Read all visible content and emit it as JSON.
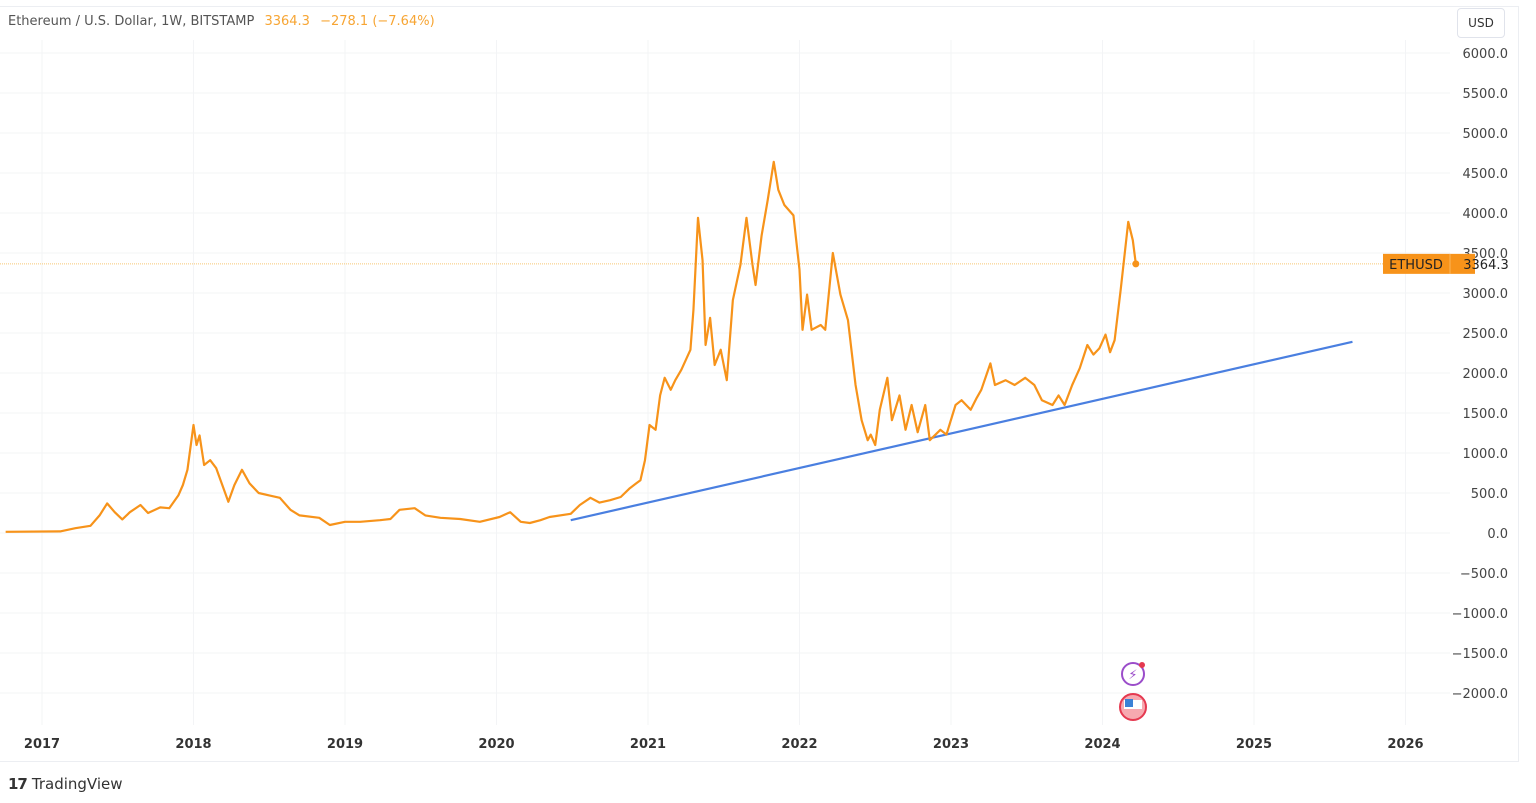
{
  "header": {
    "symbol_title": "Ethereum / U.S. Dollar, 1W, BITSTAMP",
    "last": "3364.3",
    "change": "−278.1 (−7.64%)",
    "currency_button": "USD"
  },
  "price_label": {
    "symbol": "ETHUSD",
    "value": "3364.3"
  },
  "branding": {
    "logo_text": "TradingView"
  },
  "chart_data": {
    "type": "line",
    "title": "Ethereum / U.S. Dollar, 1W, BITSTAMP",
    "xlabel": "",
    "ylabel": "",
    "xlim": [
      2016.76,
      2026.3
    ],
    "ylim": [
      -2300,
      6300
    ],
    "grid": true,
    "x_ticks": [
      "2017",
      "2018",
      "2019",
      "2020",
      "2021",
      "2022",
      "2023",
      "2024",
      "2025",
      "2026"
    ],
    "y_ticks": [
      "6000.0",
      "5500.0",
      "5000.0",
      "4500.0",
      "4000.0",
      "3500.0",
      "3000.0",
      "2500.0",
      "2000.0",
      "1500.0",
      "1000.0",
      "500.0",
      "0.0",
      "−500.0",
      "−1000.0",
      "−1500.0",
      "−2000.0"
    ],
    "colors": {
      "price": "#f7931a",
      "trendline": "#4a7fe0",
      "last_price_label": "#f7931a"
    },
    "last_price": 3364.3,
    "series": [
      {
        "name": "ETHUSD",
        "x": [
          2016.76,
          2017.12,
          2017.22,
          2017.32,
          2017.38,
          2017.43,
          2017.48,
          2017.53,
          2017.58,
          2017.65,
          2017.7,
          2017.78,
          2017.84,
          2017.9,
          2017.93,
          2017.96,
          2018.0,
          2018.02,
          2018.04,
          2018.07,
          2018.11,
          2018.15,
          2018.19,
          2018.23,
          2018.27,
          2018.32,
          2018.37,
          2018.43,
          2018.5,
          2018.57,
          2018.64,
          2018.7,
          2018.83,
          2018.9,
          2019.0,
          2019.1,
          2019.23,
          2019.3,
          2019.36,
          2019.46,
          2019.53,
          2019.63,
          2019.76,
          2019.89,
          2020.02,
          2020.09,
          2020.16,
          2020.22,
          2020.29,
          2020.35,
          2020.49,
          2020.55,
          2020.62,
          2020.68,
          2020.75,
          2020.82,
          2020.88,
          2020.95,
          2020.98,
          2021.01,
          2021.05,
          2021.08,
          2021.11,
          2021.15,
          2021.18,
          2021.22,
          2021.28,
          2021.3,
          2021.33,
          2021.36,
          2021.38,
          2021.41,
          2021.44,
          2021.48,
          2021.52,
          2021.56,
          2021.61,
          2021.65,
          2021.69,
          2021.71,
          2021.75,
          2021.79,
          2021.83,
          2021.86,
          2021.9,
          2021.96,
          2022.0,
          2022.02,
          2022.05,
          2022.08,
          2022.14,
          2022.17,
          2022.22,
          2022.27,
          2022.32,
          2022.37,
          2022.41,
          2022.45,
          2022.47,
          2022.5,
          2022.53,
          2022.58,
          2022.61,
          2022.66,
          2022.7,
          2022.74,
          2022.78,
          2022.83,
          2022.86,
          2022.93,
          2022.97,
          2023.03,
          2023.07,
          2023.13,
          2023.17,
          2023.2,
          2023.26,
          2023.29,
          2023.36,
          2023.42,
          2023.49,
          2023.55,
          2023.6,
          2023.67,
          2023.71,
          2023.75,
          2023.8,
          2023.85,
          2023.9,
          2023.94,
          2023.98,
          2024.02,
          2024.05,
          2024.08,
          2024.12,
          2024.17,
          2024.2,
          2024.22
        ],
        "y": [
          15,
          20,
          60,
          90,
          220,
          370,
          260,
          170,
          260,
          350,
          250,
          320,
          310,
          470,
          600,
          790,
          1350,
          1100,
          1220,
          850,
          910,
          810,
          600,
          390,
          600,
          790,
          620,
          500,
          470,
          440,
          290,
          220,
          190,
          100,
          140,
          140,
          160,
          175,
          290,
          310,
          220,
          190,
          175,
          140,
          200,
          260,
          140,
          125,
          160,
          200,
          240,
          350,
          440,
          380,
          410,
          450,
          560,
          660,
          910,
          1350,
          1290,
          1720,
          1940,
          1790,
          1910,
          2040,
          2290,
          2790,
          3940,
          3410,
          2350,
          2690,
          2100,
          2290,
          1910,
          2910,
          3350,
          3940,
          3350,
          3100,
          3720,
          4160,
          4640,
          4290,
          4100,
          3970,
          3290,
          2540,
          2980,
          2540,
          2600,
          2540,
          3500,
          2980,
          2660,
          1850,
          1410,
          1160,
          1230,
          1100,
          1540,
          1940,
          1410,
          1720,
          1290,
          1600,
          1260,
          1600,
          1160,
          1290,
          1230,
          1600,
          1660,
          1540,
          1690,
          1790,
          2120,
          1850,
          1910,
          1850,
          1940,
          1850,
          1660,
          1600,
          1720,
          1600,
          1850,
          2060,
          2350,
          2230,
          2310,
          2480,
          2260,
          2410,
          3040,
          3890,
          3660,
          3364.3
        ]
      }
    ],
    "trendline": {
      "x": [
        2020.49,
        2025.65
      ],
      "y": [
        160,
        2390
      ]
    }
  }
}
